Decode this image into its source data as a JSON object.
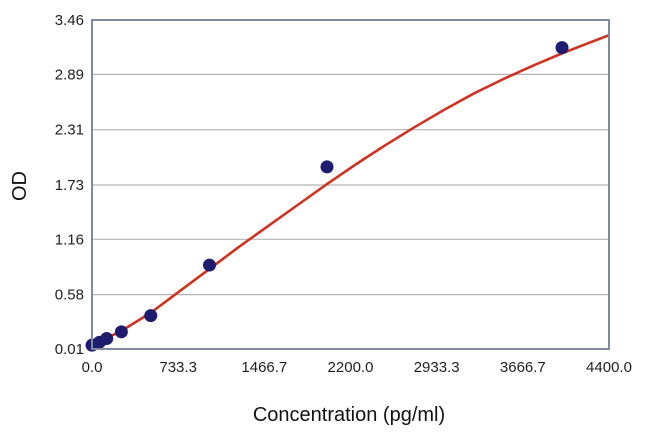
{
  "chart_data": {
    "type": "scatter",
    "title": "",
    "xlabel": "Concentration (pg/ml)",
    "ylabel": "OD",
    "xlim": [
      0,
      4400
    ],
    "ylim": [
      0.01,
      3.46
    ],
    "x_ticks": [
      "0.0",
      "733.3",
      "1466.7",
      "2200.0",
      "2933.3",
      "3666.7",
      "4400.0"
    ],
    "y_ticks": [
      "0.01",
      "0.58",
      "1.16",
      "1.73",
      "2.31",
      "2.89",
      "3.46"
    ],
    "grid": "horizontal",
    "legend": "none",
    "series": [
      {
        "kind": "points",
        "color": "#1f1b6e",
        "x": [
          0,
          62.5,
          125,
          250,
          500,
          1000,
          2000,
          4000
        ],
        "y": [
          0.05,
          0.08,
          0.12,
          0.19,
          0.36,
          0.89,
          1.92,
          3.17
        ]
      },
      {
        "kind": "fit-curve",
        "color": "#cc3322",
        "x": [
          0,
          250,
          500,
          750,
          1000,
          1250,
          1500,
          1750,
          2000,
          2250,
          2500,
          2750,
          3000,
          3250,
          3500,
          3750,
          4000,
          4250,
          4400
        ],
        "y": [
          0.05,
          0.2,
          0.39,
          0.62,
          0.85,
          1.08,
          1.3,
          1.52,
          1.74,
          1.95,
          2.15,
          2.34,
          2.52,
          2.69,
          2.84,
          2.98,
          3.11,
          3.23,
          3.3
        ]
      }
    ],
    "colors": {
      "plot_border": "#7f8aa0",
      "grid": "#b4b4b4"
    }
  }
}
